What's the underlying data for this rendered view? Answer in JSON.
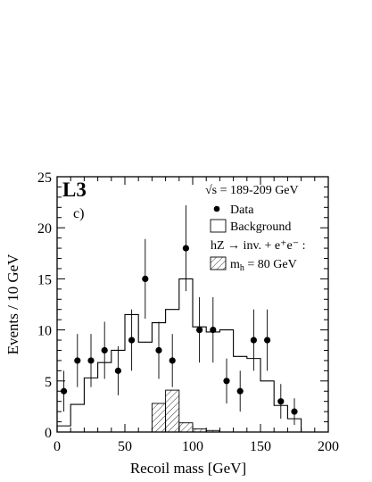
{
  "chart_data": {
    "type": "bar",
    "experiment_label": "L3",
    "panel_label": "c)",
    "xlabel": "Recoil mass  [GeV]",
    "ylabel": "Events / 10 GeV",
    "xlim": [
      0,
      200
    ],
    "ylim": [
      0,
      25
    ],
    "x_ticks": [
      0,
      50,
      100,
      150,
      200
    ],
    "y_ticks": [
      0,
      5,
      10,
      15,
      20,
      25
    ],
    "legend": {
      "sqrt_s": "√s = 189-209 GeV",
      "data": "Data",
      "background": "Background",
      "signal_header": "hZ → inv. + e⁺e⁻ :",
      "signal": "m",
      "signal_sub": "h",
      "signal_suffix": " = 80 GeV",
      "placement": "top-right"
    },
    "bin_edges": [
      0,
      10,
      20,
      30,
      40,
      50,
      60,
      70,
      80,
      90,
      100,
      110,
      120,
      130,
      140,
      150,
      160,
      170,
      180
    ],
    "background": [
      0.6,
      2.7,
      5.3,
      6.8,
      8.0,
      11.5,
      8.8,
      10.7,
      12.0,
      15.0,
      10.3,
      9.8,
      10.0,
      7.4,
      7.2,
      5.0,
      2.6,
      1.3
    ],
    "signal": {
      "x_min": 70,
      "widths": [
        10,
        10,
        10,
        10,
        10
      ],
      "values": [
        2.8,
        4.1,
        0.9,
        0.3,
        0.15
      ]
    },
    "data": {
      "x": [
        5,
        15,
        25,
        35,
        45,
        55,
        65,
        75,
        85,
        95,
        105,
        115,
        125,
        135,
        145,
        155,
        165,
        175
      ],
      "y": [
        4,
        7,
        7,
        8,
        6,
        9,
        15,
        8,
        7,
        18,
        10,
        10,
        5,
        4,
        9,
        9,
        3,
        2
      ],
      "err_low": [
        2.0,
        2.6,
        2.6,
        2.8,
        2.4,
        3.0,
        3.9,
        2.8,
        2.6,
        4.2,
        3.2,
        3.2,
        2.2,
        2.0,
        3.0,
        3.0,
        1.7,
        1.3
      ],
      "err_high": [
        2.0,
        2.6,
        2.6,
        2.8,
        2.4,
        3.0,
        3.9,
        2.8,
        2.6,
        4.2,
        3.2,
        3.2,
        2.2,
        2.0,
        3.0,
        3.0,
        1.7,
        1.3
      ]
    }
  }
}
